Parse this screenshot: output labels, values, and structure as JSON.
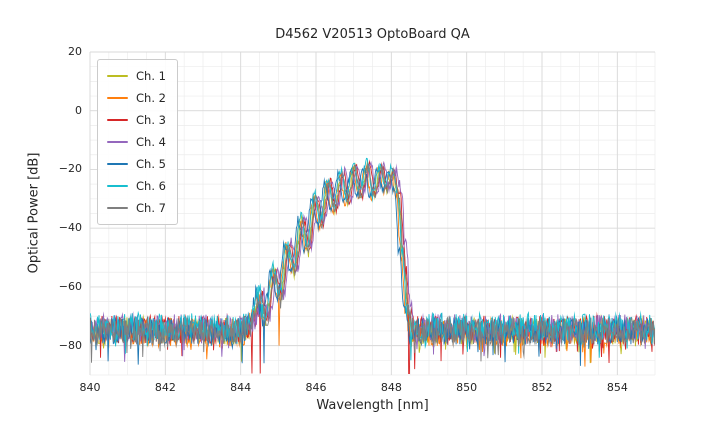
{
  "chart_data": {
    "type": "line",
    "title": "D4562 V20513 OptoBoard QA",
    "xlabel": "Wavelength [nm]",
    "ylabel": "Optical Power [dB]",
    "xlim": [
      840,
      855
    ],
    "ylim": [
      -90,
      20
    ],
    "xticks": [
      840,
      842,
      844,
      846,
      848,
      850,
      852,
      854
    ],
    "xtick_labels": [
      "840",
      "842",
      "844",
      "846",
      "848",
      "850",
      "852",
      "854"
    ],
    "yticks": [
      20,
      0,
      -20,
      -40,
      -60,
      -80
    ],
    "ytick_labels": [
      "20",
      "0",
      "−20",
      "−40",
      "−60",
      "−80"
    ],
    "x_minor_step": 0.5,
    "y_minor_step": 5,
    "grid": true,
    "grid_major_color": "#d9d9d9",
    "grid_minor_color": "#ececec",
    "background_color": "#ffffff",
    "text_color": "#262626",
    "legend_position": "upper-left",
    "sample_step_nm": 0.02,
    "series": [
      {
        "name": "Ch. 1",
        "color": "#bcbd22",
        "wl_offset": 0.0,
        "db_offset": 0.0,
        "seed": 101,
        "deep_spikes": []
      },
      {
        "name": "Ch. 2",
        "color": "#ff7f0e",
        "wl_offset": -0.05,
        "db_offset": -0.5,
        "seed": 202,
        "deep_spikes": [
          [
            845.02,
            -80
          ]
        ]
      },
      {
        "name": "Ch. 3",
        "color": "#d62728",
        "wl_offset": 0.05,
        "db_offset": 0.5,
        "seed": 303,
        "deep_spikes": [
          [
            844.3,
            -89.5
          ],
          [
            844.52,
            -89.5
          ],
          [
            848.47,
            -89.5
          ],
          [
            848.62,
            -88
          ]
        ]
      },
      {
        "name": "Ch. 4",
        "color": "#9467bd",
        "wl_offset": 0.09,
        "db_offset": 1.0,
        "seed": 404,
        "deep_spikes": []
      },
      {
        "name": "Ch. 5",
        "color": "#1f77b4",
        "wl_offset": -0.09,
        "db_offset": 0.0,
        "seed": 505,
        "deep_spikes": [
          [
            844.62,
            -86
          ]
        ]
      },
      {
        "name": "Ch. 6",
        "color": "#17becf",
        "wl_offset": -0.02,
        "db_offset": 1.5,
        "seed": 606,
        "deep_spikes": [
          [
            848.52,
            -85
          ]
        ]
      },
      {
        "name": "Ch. 7",
        "color": "#7f7f7f",
        "wl_offset": 0.02,
        "db_offset": 0.0,
        "seed": 707,
        "deep_spikes": []
      }
    ],
    "envelope": [
      [
        840.0,
        -75
      ],
      [
        844.15,
        -75
      ],
      [
        844.3,
        -72
      ],
      [
        844.5,
        -63
      ],
      [
        844.68,
        -71
      ],
      [
        844.88,
        -55
      ],
      [
        845.05,
        -64
      ],
      [
        845.25,
        -46
      ],
      [
        845.42,
        -55
      ],
      [
        845.62,
        -37
      ],
      [
        845.78,
        -47
      ],
      [
        845.98,
        -29.5
      ],
      [
        846.13,
        -39
      ],
      [
        846.33,
        -24.5
      ],
      [
        846.48,
        -34
      ],
      [
        846.68,
        -21.5
      ],
      [
        846.83,
        -31
      ],
      [
        847.02,
        -19.5
      ],
      [
        847.17,
        -29
      ],
      [
        847.37,
        -19
      ],
      [
        847.52,
        -29
      ],
      [
        847.72,
        -19.5
      ],
      [
        847.86,
        -27
      ],
      [
        848.02,
        -21
      ],
      [
        848.18,
        -28
      ],
      [
        848.3,
        -48
      ],
      [
        848.42,
        -66
      ],
      [
        848.55,
        -75
      ],
      [
        855.0,
        -75
      ]
    ],
    "noise_amplitude": [
      [
        840,
        5.5
      ],
      [
        844.1,
        5.5
      ],
      [
        844.5,
        3.5
      ],
      [
        845.0,
        2.5
      ],
      [
        845.6,
        1.8
      ],
      [
        848.0,
        1.5
      ],
      [
        848.3,
        3.0
      ],
      [
        848.55,
        5.5
      ],
      [
        855,
        5.5
      ]
    ]
  }
}
